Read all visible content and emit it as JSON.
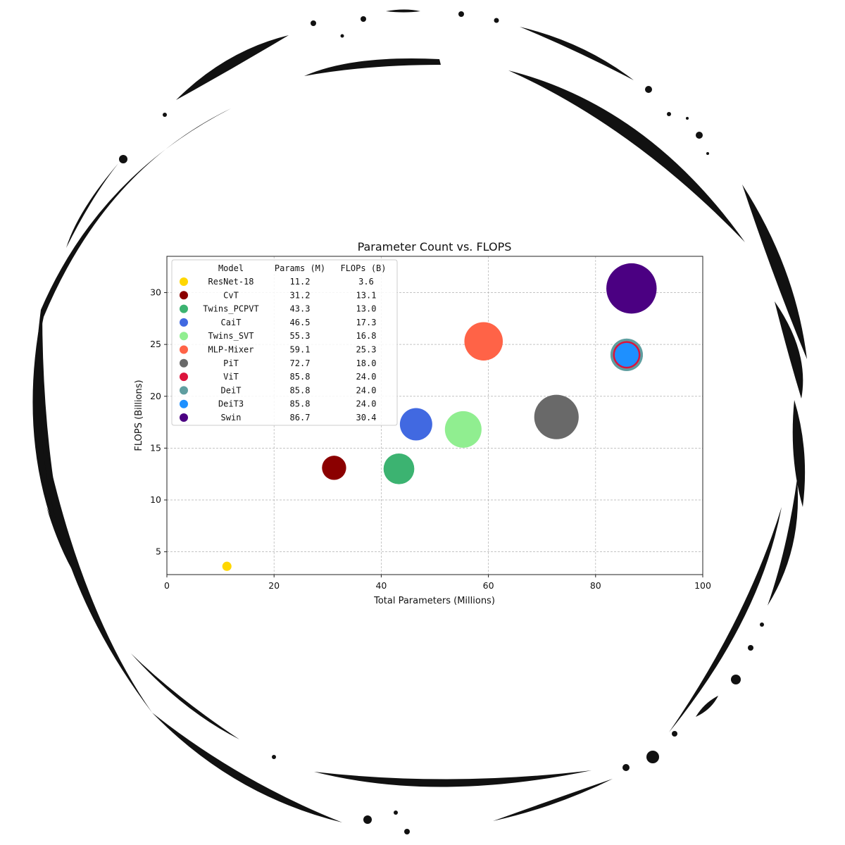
{
  "chart_data": {
    "type": "scatter",
    "title": "Parameter Count vs. FLOPS",
    "xlabel": "Total Parameters (Millions)",
    "ylabel": "FLOPS (Billions)",
    "xlim": [
      0,
      100
    ],
    "ylim": [
      2.8,
      33.5
    ],
    "xticks": [
      0,
      20,
      40,
      60,
      80,
      100
    ],
    "yticks": [
      5,
      10,
      15,
      20,
      25,
      30
    ],
    "grid": true,
    "legend_position": "upper-left",
    "legend_headers": [
      "Model",
      "Params (M)",
      "FLOPs (B)"
    ],
    "series": [
      {
        "name": "ResNet-18",
        "x": 11.2,
        "y": 3.6,
        "params_label": "11.2",
        "flops_label": "3.6",
        "color": "#FFD700"
      },
      {
        "name": "CvT",
        "x": 31.2,
        "y": 13.1,
        "params_label": "31.2",
        "flops_label": "13.1",
        "color": "#8B0000"
      },
      {
        "name": "Twins_PCPVT",
        "x": 43.3,
        "y": 13.0,
        "params_label": "43.3",
        "flops_label": "13.0",
        "color": "#3CB371"
      },
      {
        "name": "CaiT",
        "x": 46.5,
        "y": 17.3,
        "params_label": "46.5",
        "flops_label": "17.3",
        "color": "#4169E1"
      },
      {
        "name": "Twins_SVT",
        "x": 55.3,
        "y": 16.8,
        "params_label": "55.3",
        "flops_label": "16.8",
        "color": "#90EE90"
      },
      {
        "name": "MLP-Mixer",
        "x": 59.1,
        "y": 25.3,
        "params_label": "59.1",
        "flops_label": "25.3",
        "color": "#FF6347"
      },
      {
        "name": "PiT",
        "x": 72.7,
        "y": 18.0,
        "params_label": "72.7",
        "flops_label": "18.0",
        "color": "#696969"
      },
      {
        "name": "ViT",
        "x": 85.8,
        "y": 24.0,
        "params_label": "85.8",
        "flops_label": "24.0",
        "color": "#DC143C"
      },
      {
        "name": "DeiT",
        "x": 85.8,
        "y": 24.0,
        "params_label": "85.8",
        "flops_label": "24.0",
        "color": "#5F9EA0"
      },
      {
        "name": "DeiT3",
        "x": 85.8,
        "y": 24.0,
        "params_label": "85.8",
        "flops_label": "24.0",
        "color": "#1E90FF"
      },
      {
        "name": "Swin",
        "x": 86.7,
        "y": 30.4,
        "params_label": "86.7",
        "flops_label": "30.4",
        "color": "#4B0082"
      }
    ]
  },
  "frame_color": "#111111"
}
